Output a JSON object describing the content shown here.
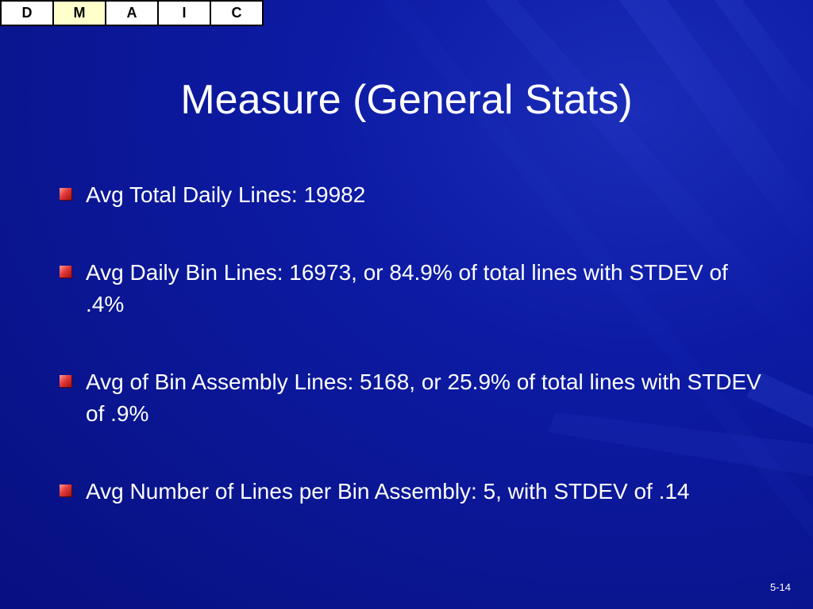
{
  "tabs": [
    {
      "label": "D",
      "active": false
    },
    {
      "label": "M",
      "active": true
    },
    {
      "label": "A",
      "active": false
    },
    {
      "label": "I",
      "active": false
    },
    {
      "label": "C",
      "active": false
    }
  ],
  "slide": {
    "title": "Measure (General Stats)",
    "bullets": [
      "Avg Total Daily Lines: 19982",
      "Avg Daily Bin Lines: 16973, or 84.9% of total lines with STDEV of .4%",
      "Avg of Bin Assembly Lines: 5168, or 25.9% of total lines with STDEV of .9%",
      "Avg Number of Lines per Bin Assembly: 5, with STDEV of .14"
    ],
    "page_number": "5-14"
  },
  "colors": {
    "background": "#0a1590",
    "text": "#ffffff",
    "bullet": "#e23a3a",
    "active_tab": "#ffffcc"
  }
}
